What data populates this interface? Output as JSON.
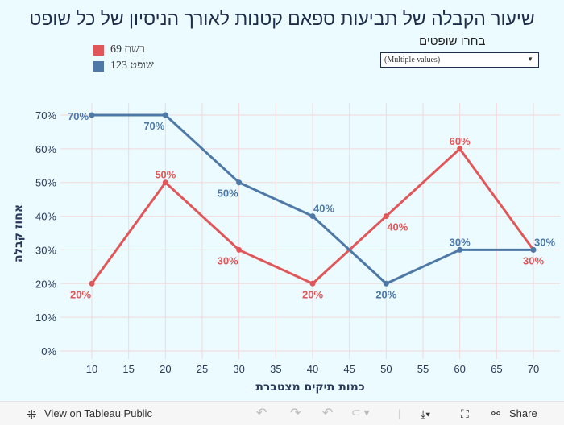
{
  "title": "שיעור הקבלה של תביעות ספאם קטנות לאורך הניסיון של כל שופט",
  "filter": {
    "label": "בחרו שופטים",
    "value": "(Multiple values)"
  },
  "chart_data": {
    "type": "line",
    "xlabel": "כמות תיקים מצטברת",
    "ylabel": "אחוז קבלה",
    "x_ticks": [
      10,
      15,
      20,
      25,
      30,
      35,
      40,
      45,
      50,
      55,
      60,
      65,
      70
    ],
    "y_ticks": [
      0,
      10,
      20,
      30,
      40,
      50,
      60,
      70
    ],
    "xlim": [
      5,
      73
    ],
    "ylim": [
      -2,
      75
    ],
    "grid": true,
    "legend": "top-left",
    "x": [
      10,
      20,
      30,
      40,
      50,
      60,
      70
    ],
    "series": [
      {
        "name": "רשת 69",
        "color": "#e15759",
        "values": [
          20,
          50,
          30,
          20,
          40,
          60,
          30
        ]
      },
      {
        "name": "שופט 123",
        "color": "#4e79a7",
        "values": [
          70,
          70,
          50,
          40,
          20,
          30,
          30
        ]
      }
    ]
  },
  "footer": {
    "view": "View on Tableau Public",
    "share": "Share"
  }
}
